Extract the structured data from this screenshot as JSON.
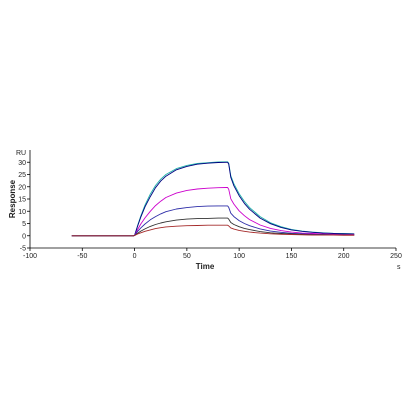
{
  "chart_data": {
    "type": "line",
    "title": "",
    "xlabel": "Time",
    "ylabel": "Response",
    "x_unit": "s",
    "y_unit": "RU",
    "xlim": [
      -100,
      250
    ],
    "ylim": [
      -5,
      35
    ],
    "x_ticks": [
      -100,
      -50,
      0,
      50,
      100,
      150,
      200,
      250
    ],
    "y_ticks": [
      -5,
      0,
      5,
      10,
      15,
      20,
      25,
      30
    ],
    "grid": false,
    "legend": "none",
    "x": [
      -60,
      -40,
      -20,
      -1,
      0,
      3,
      6,
      10,
      15,
      20,
      25,
      30,
      40,
      50,
      60,
      70,
      80,
      88,
      89,
      90,
      92,
      95,
      100,
      105,
      110,
      120,
      130,
      140,
      150,
      160,
      170,
      180,
      190,
      200,
      210
    ],
    "series": [
      {
        "color": "#20b2aa",
        "values": [
          0,
          0,
          0,
          0,
          0.2,
          4.3,
          8.1,
          12.5,
          17.0,
          20.5,
          23.1,
          25.0,
          27.4,
          28.7,
          29.5,
          29.8,
          30.1,
          30.2,
          30.2,
          29.6,
          24.5,
          21.2,
          17.2,
          14.0,
          11.5,
          7.8,
          5.3,
          3.7,
          2.6,
          1.9,
          1.5,
          1.2,
          1.0,
          0.9,
          0.8
        ]
      },
      {
        "color": "#000080",
        "values": [
          0,
          0,
          0,
          0,
          0.2,
          4.0,
          7.6,
          11.8,
          16.0,
          19.6,
          22.3,
          24.3,
          26.9,
          28.3,
          29.2,
          29.6,
          29.9,
          30.0,
          30.0,
          29.3,
          23.8,
          20.4,
          16.4,
          13.2,
          10.8,
          7.2,
          4.9,
          3.4,
          2.4,
          1.8,
          1.4,
          1.1,
          0.9,
          0.8,
          0.7
        ]
      },
      {
        "color": "#cc00cc",
        "values": [
          0,
          0,
          0,
          0,
          0.2,
          2.6,
          4.8,
          7.3,
          10.0,
          12.3,
          14.1,
          15.6,
          17.4,
          18.5,
          19.1,
          19.4,
          19.6,
          19.7,
          19.7,
          19.0,
          15.1,
          12.9,
          10.2,
          8.2,
          6.6,
          4.4,
          3.0,
          2.1,
          1.5,
          1.1,
          0.9,
          0.7,
          0.6,
          0.5,
          0.5
        ]
      },
      {
        "color": "#2e2ea8",
        "values": [
          0,
          0,
          0,
          0,
          0.1,
          1.8,
          3.2,
          4.8,
          6.5,
          7.8,
          8.9,
          9.8,
          10.9,
          11.5,
          11.9,
          12.1,
          12.2,
          12.2,
          12.2,
          11.6,
          9.2,
          7.8,
          6.2,
          5.0,
          4.1,
          2.8,
          1.9,
          1.4,
          1.0,
          0.8,
          0.6,
          0.5,
          0.4,
          0.4,
          0.3
        ]
      },
      {
        "color": "#333333",
        "values": [
          0,
          0,
          0,
          0,
          0.1,
          1.0,
          1.9,
          2.8,
          3.8,
          4.6,
          5.2,
          5.7,
          6.4,
          6.8,
          7.0,
          7.1,
          7.2,
          7.2,
          7.2,
          6.8,
          5.4,
          4.6,
          3.7,
          3.0,
          2.5,
          1.7,
          1.2,
          0.9,
          0.7,
          0.5,
          0.4,
          0.4,
          0.3,
          0.3,
          0.3
        ]
      },
      {
        "color": "#a52a2a",
        "values": [
          0,
          0,
          0,
          0,
          0.1,
          0.7,
          1.2,
          1.8,
          2.4,
          2.9,
          3.3,
          3.6,
          3.9,
          4.1,
          4.2,
          4.3,
          4.3,
          4.3,
          4.3,
          4.0,
          3.2,
          2.7,
          2.2,
          1.8,
          1.5,
          1.1,
          0.8,
          0.6,
          0.5,
          0.4,
          0.3,
          0.3,
          0.3,
          0.2,
          0.2
        ]
      }
    ]
  }
}
